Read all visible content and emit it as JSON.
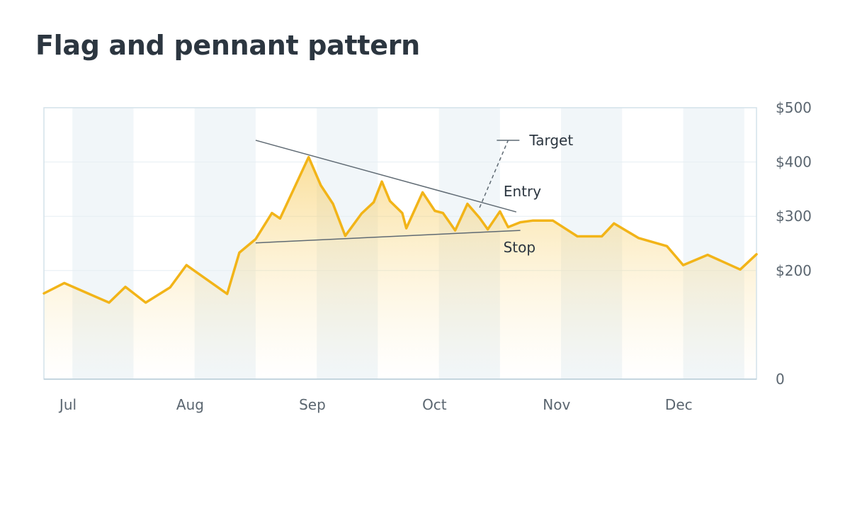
{
  "chart_data": {
    "type": "area",
    "title": "Flag and pennant pattern",
    "xlabel": "",
    "ylabel": "",
    "x_ticks": [
      "Jul",
      "Aug",
      "Sep",
      "Oct",
      "Nov",
      "Dec"
    ],
    "y_ticks": [
      "0",
      "$200",
      "$300",
      "$400",
      "$500"
    ],
    "ylim": [
      0,
      500
    ],
    "x_range_days": [
      0,
      175
    ],
    "grid": "horizontal",
    "y_axis_position": "right",
    "alternating_month_shading": true,
    "series": [
      {
        "color": "#f2b418",
        "points": [
          [
            0,
            158
          ],
          [
            5,
            177
          ],
          [
            16,
            141
          ],
          [
            20,
            170
          ],
          [
            25,
            141
          ],
          [
            31,
            169
          ],
          [
            35,
            210
          ],
          [
            45,
            157
          ],
          [
            48,
            233
          ],
          [
            52,
            258
          ],
          [
            56,
            306
          ],
          [
            58,
            296
          ],
          [
            65,
            409
          ],
          [
            68,
            357
          ],
          [
            71,
            323
          ],
          [
            74,
            264
          ],
          [
            78,
            305
          ],
          [
            81,
            326
          ],
          [
            83,
            364
          ],
          [
            85,
            328
          ],
          [
            88,
            306
          ],
          [
            89,
            278
          ],
          [
            93,
            344
          ],
          [
            96,
            310
          ],
          [
            98,
            306
          ],
          [
            101,
            274
          ],
          [
            104,
            323
          ],
          [
            107,
            297
          ],
          [
            109,
            276
          ],
          [
            112,
            309
          ],
          [
            114,
            280
          ],
          [
            117,
            289
          ],
          [
            120,
            292
          ],
          [
            125,
            292
          ],
          [
            131,
            263
          ],
          [
            137,
            263
          ],
          [
            140,
            287
          ],
          [
            146,
            260
          ],
          [
            153,
            245
          ],
          [
            157,
            210
          ],
          [
            163,
            229
          ],
          [
            171,
            202
          ],
          [
            175,
            230
          ]
        ]
      }
    ],
    "annotations": [
      {
        "label": "Target",
        "type": "dashed-line",
        "from": [
          107,
          316
        ],
        "to": [
          114,
          440
        ]
      },
      {
        "label": "Entry",
        "type": "trendline",
        "from": [
          52,
          440
        ],
        "to": [
          116,
          308
        ]
      },
      {
        "label": "Stop",
        "type": "trendline",
        "from": [
          52,
          251
        ],
        "to": [
          117,
          274
        ]
      }
    ]
  }
}
